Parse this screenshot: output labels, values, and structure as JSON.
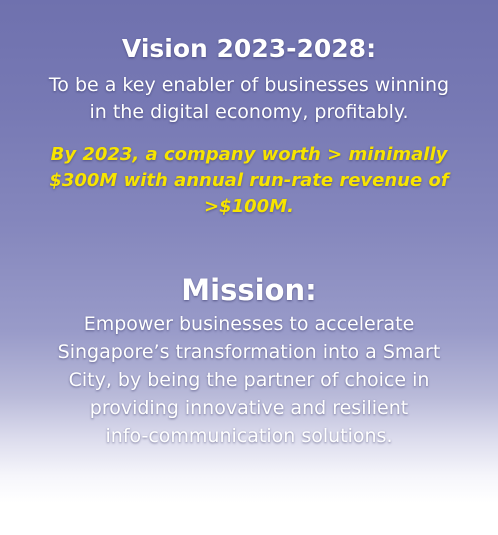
{
  "vision": {
    "title": "Vision 2023-2028:",
    "statement_lines": [
      "To be a key enabler of businesses winning",
      "in the digital economy, profitably."
    ],
    "target_lines": [
      "By 2023, a company worth > minimally",
      "$300M with annual run-rate revenue of",
      ">$100M."
    ]
  },
  "mission": {
    "title": "Mission:",
    "statement_lines": [
      "Empower businesses to accelerate",
      "Singapore’s transformation into a Smart",
      "City, by being the partner of choice in",
      "providing innovative and resilient",
      "info-communication solutions."
    ]
  },
  "colors": {
    "background_top": "#6f71ae",
    "background_bottom": "#ffffff",
    "text": "#ffffff",
    "highlight": "#f7e400"
  }
}
